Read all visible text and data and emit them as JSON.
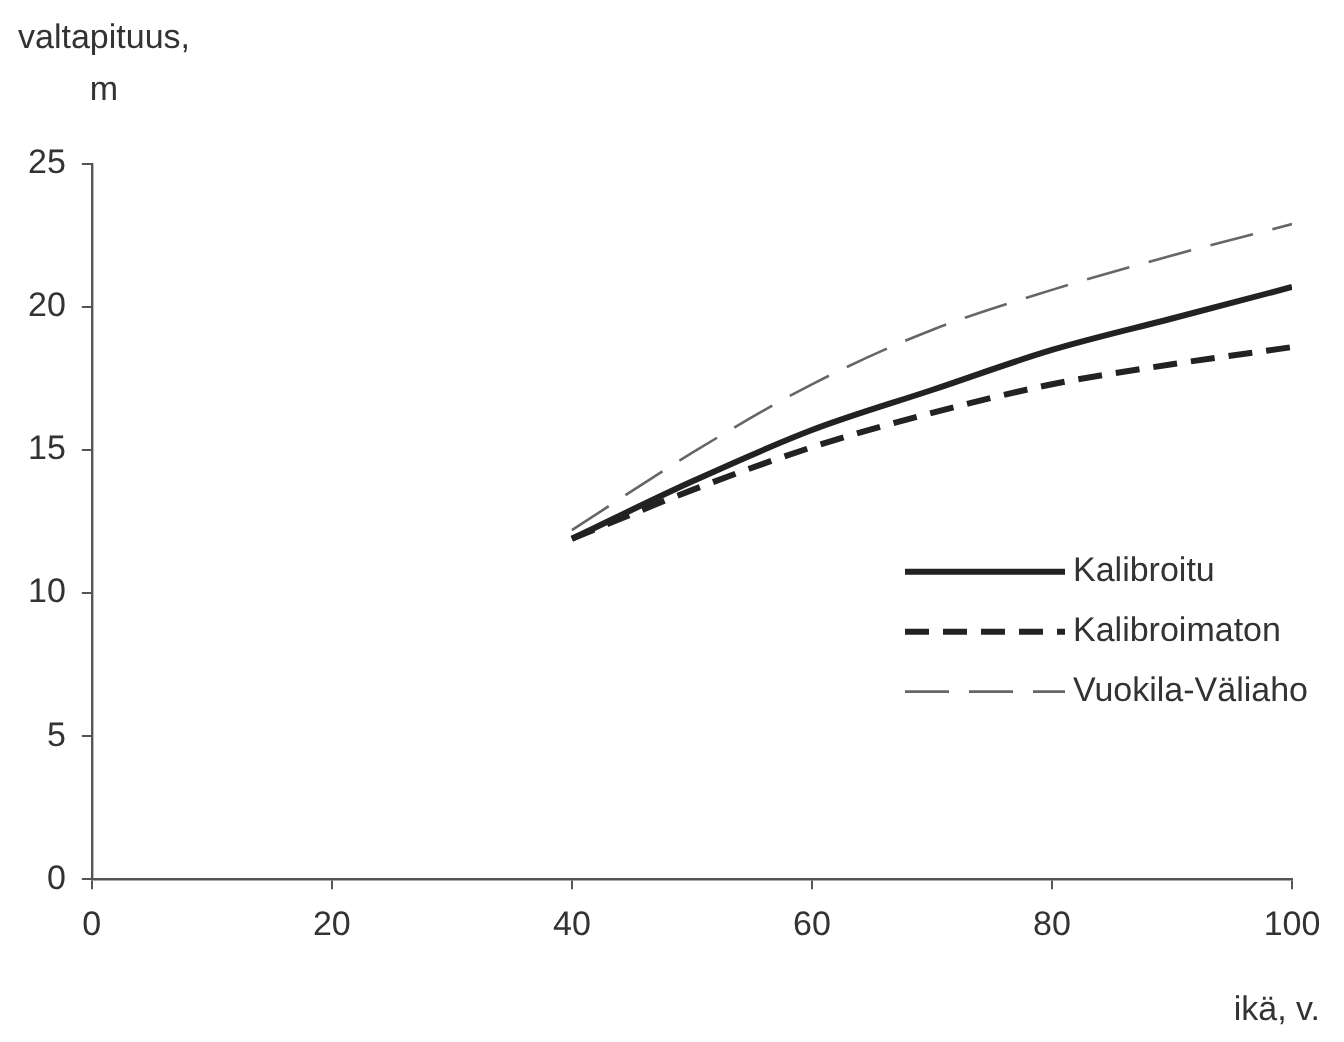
{
  "chart_data": {
    "type": "line",
    "xlabel": "ikä, v.",
    "ylabel": "valtapituus, m",
    "x": [
      40,
      50,
      60,
      70,
      80,
      90,
      100
    ],
    "series": [
      {
        "name": "Kalibroitu",
        "color": "#222222",
        "line_style": "solid",
        "values": [
          11.9,
          13.9,
          15.7,
          17.1,
          18.5,
          19.6,
          20.7
        ]
      },
      {
        "name": "Kalibroimaton",
        "color": "#222222",
        "line_style": "dashed",
        "values": [
          11.9,
          13.6,
          15.1,
          16.3,
          17.3,
          18.0,
          18.6
        ]
      },
      {
        "name": "Vuokila-Väliaho",
        "color": "#666666",
        "line_style": "dashed",
        "values": [
          12.2,
          14.9,
          17.3,
          19.2,
          20.6,
          21.8,
          22.9
        ]
      }
    ],
    "xlim": [
      0,
      100
    ],
    "xticks": [
      0,
      20,
      40,
      60,
      80,
      100
    ],
    "ylim": [
      0,
      25
    ],
    "yticks": [
      0,
      5,
      10,
      15,
      20,
      25
    ],
    "grid": false,
    "legend": "right",
    "marker": "none"
  }
}
